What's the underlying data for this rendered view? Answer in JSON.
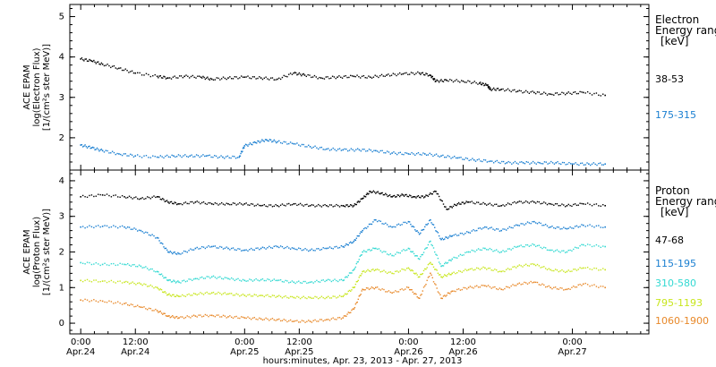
{
  "chart_data": [
    {
      "type": "scatter",
      "panel": "electron",
      "ylabel_lines": [
        "ACE EPAM",
        "log(Electron Flux)",
        "[1/(cm²s ster MeV)]"
      ],
      "ylim": [
        1.2,
        5.3
      ],
      "yticks": [
        "2",
        "3",
        "4",
        "5"
      ],
      "legend_title": [
        "Electron",
        "Energy range",
        "[keV]"
      ],
      "series": [
        {
          "name": "38-53",
          "color": "#000000",
          "points": [
            [
              0.0,
              3.95
            ],
            [
              0.1,
              3.9
            ],
            [
              0.2,
              3.82
            ],
            [
              0.35,
              3.72
            ],
            [
              0.5,
              3.6
            ],
            [
              0.7,
              3.52
            ],
            [
              0.8,
              3.48
            ],
            [
              0.95,
              3.52
            ],
            [
              1.1,
              3.5
            ],
            [
              1.2,
              3.45
            ],
            [
              1.35,
              3.48
            ],
            [
              1.5,
              3.5
            ],
            [
              1.65,
              3.48
            ],
            [
              1.8,
              3.45
            ],
            [
              1.95,
              3.6
            ],
            [
              2.05,
              3.55
            ],
            [
              2.2,
              3.48
            ],
            [
              2.35,
              3.5
            ],
            [
              2.5,
              3.52
            ],
            [
              2.65,
              3.5
            ],
            [
              2.8,
              3.55
            ],
            [
              2.95,
              3.58
            ],
            [
              3.1,
              3.6
            ],
            [
              3.2,
              3.55
            ],
            [
              3.25,
              3.4
            ],
            [
              3.35,
              3.42
            ],
            [
              3.5,
              3.4
            ],
            [
              3.65,
              3.35
            ],
            [
              3.72,
              3.3
            ],
            [
              3.75,
              3.2
            ],
            [
              3.85,
              3.2
            ],
            [
              4.0,
              3.15
            ],
            [
              4.15,
              3.12
            ],
            [
              4.3,
              3.08
            ],
            [
              4.45,
              3.1
            ],
            [
              4.6,
              3.12
            ],
            [
              4.8,
              3.05
            ]
          ]
        },
        {
          "name": "175-315",
          "color": "#1a7fd1",
          "points": [
            [
              0.0,
              1.82
            ],
            [
              0.1,
              1.75
            ],
            [
              0.2,
              1.68
            ],
            [
              0.35,
              1.6
            ],
            [
              0.5,
              1.55
            ],
            [
              0.7,
              1.52
            ],
            [
              0.85,
              1.55
            ],
            [
              1.0,
              1.55
            ],
            [
              1.15,
              1.55
            ],
            [
              1.3,
              1.52
            ],
            [
              1.45,
              1.52
            ],
            [
              1.5,
              1.8
            ],
            [
              1.6,
              1.88
            ],
            [
              1.7,
              1.95
            ],
            [
              1.8,
              1.9
            ],
            [
              1.95,
              1.85
            ],
            [
              2.1,
              1.78
            ],
            [
              2.25,
              1.72
            ],
            [
              2.4,
              1.7
            ],
            [
              2.55,
              1.7
            ],
            [
              2.7,
              1.68
            ],
            [
              2.85,
              1.62
            ],
            [
              3.0,
              1.6
            ],
            [
              3.15,
              1.6
            ],
            [
              3.3,
              1.55
            ],
            [
              3.45,
              1.5
            ],
            [
              3.6,
              1.45
            ],
            [
              3.75,
              1.42
            ],
            [
              3.9,
              1.38
            ],
            [
              4.05,
              1.38
            ],
            [
              4.2,
              1.38
            ],
            [
              4.35,
              1.38
            ],
            [
              4.5,
              1.35
            ],
            [
              4.65,
              1.35
            ],
            [
              4.8,
              1.35
            ]
          ]
        }
      ]
    },
    {
      "type": "scatter",
      "panel": "proton",
      "ylabel_lines": [
        "ACE EPAM",
        "log(Proton Flux)",
        "[1/(cm²s ster MeV)]"
      ],
      "ylim": [
        -0.3,
        4.3
      ],
      "yticks": [
        "0",
        "1",
        "2",
        "3",
        "4"
      ],
      "legend_title": [
        "Proton",
        "Energy range",
        "[keV]"
      ],
      "series": [
        {
          "name": "47-68",
          "color": "#000000",
          "points": [
            [
              0.0,
              3.55
            ],
            [
              0.2,
              3.6
            ],
            [
              0.4,
              3.55
            ],
            [
              0.55,
              3.5
            ],
            [
              0.7,
              3.55
            ],
            [
              0.8,
              3.4
            ],
            [
              0.9,
              3.35
            ],
            [
              1.05,
              3.4
            ],
            [
              1.2,
              3.35
            ],
            [
              1.35,
              3.35
            ],
            [
              1.5,
              3.35
            ],
            [
              1.65,
              3.3
            ],
            [
              1.8,
              3.3
            ],
            [
              1.95,
              3.35
            ],
            [
              2.1,
              3.3
            ],
            [
              2.25,
              3.3
            ],
            [
              2.4,
              3.3
            ],
            [
              2.5,
              3.3
            ],
            [
              2.58,
              3.5
            ],
            [
              2.65,
              3.7
            ],
            [
              2.75,
              3.65
            ],
            [
              2.85,
              3.55
            ],
            [
              2.95,
              3.6
            ],
            [
              3.05,
              3.55
            ],
            [
              3.15,
              3.55
            ],
            [
              3.25,
              3.7
            ],
            [
              3.35,
              3.2
            ],
            [
              3.45,
              3.35
            ],
            [
              3.55,
              3.4
            ],
            [
              3.7,
              3.35
            ],
            [
              3.85,
              3.3
            ],
            [
              4.0,
              3.4
            ],
            [
              4.15,
              3.4
            ],
            [
              4.3,
              3.35
            ],
            [
              4.45,
              3.3
            ],
            [
              4.6,
              3.35
            ],
            [
              4.8,
              3.3
            ]
          ]
        },
        {
          "name": "115-195",
          "color": "#1a7fd1",
          "points": [
            [
              0.0,
              2.7
            ],
            [
              0.2,
              2.72
            ],
            [
              0.4,
              2.7
            ],
            [
              0.55,
              2.6
            ],
            [
              0.7,
              2.4
            ],
            [
              0.8,
              2.0
            ],
            [
              0.9,
              1.95
            ],
            [
              1.05,
              2.1
            ],
            [
              1.2,
              2.15
            ],
            [
              1.35,
              2.1
            ],
            [
              1.5,
              2.05
            ],
            [
              1.65,
              2.1
            ],
            [
              1.8,
              2.15
            ],
            [
              1.95,
              2.1
            ],
            [
              2.1,
              2.05
            ],
            [
              2.25,
              2.1
            ],
            [
              2.4,
              2.15
            ],
            [
              2.5,
              2.3
            ],
            [
              2.58,
              2.6
            ],
            [
              2.7,
              2.9
            ],
            [
              2.85,
              2.7
            ],
            [
              3.0,
              2.85
            ],
            [
              3.1,
              2.5
            ],
            [
              3.2,
              2.9
            ],
            [
              3.3,
              2.35
            ],
            [
              3.4,
              2.45
            ],
            [
              3.55,
              2.55
            ],
            [
              3.7,
              2.7
            ],
            [
              3.85,
              2.6
            ],
            [
              4.0,
              2.75
            ],
            [
              4.15,
              2.85
            ],
            [
              4.3,
              2.7
            ],
            [
              4.45,
              2.65
            ],
            [
              4.6,
              2.75
            ],
            [
              4.8,
              2.7
            ]
          ]
        },
        {
          "name": "310-580",
          "color": "#33d9d2",
          "points": [
            [
              0.0,
              1.7
            ],
            [
              0.2,
              1.65
            ],
            [
              0.4,
              1.65
            ],
            [
              0.55,
              1.6
            ],
            [
              0.7,
              1.45
            ],
            [
              0.8,
              1.2
            ],
            [
              0.9,
              1.15
            ],
            [
              1.05,
              1.25
            ],
            [
              1.2,
              1.3
            ],
            [
              1.35,
              1.25
            ],
            [
              1.5,
              1.2
            ],
            [
              1.65,
              1.22
            ],
            [
              1.8,
              1.2
            ],
            [
              1.95,
              1.15
            ],
            [
              2.1,
              1.15
            ],
            [
              2.25,
              1.2
            ],
            [
              2.4,
              1.2
            ],
            [
              2.5,
              1.5
            ],
            [
              2.58,
              2.0
            ],
            [
              2.7,
              2.1
            ],
            [
              2.85,
              1.9
            ],
            [
              3.0,
              2.1
            ],
            [
              3.1,
              1.8
            ],
            [
              3.2,
              2.3
            ],
            [
              3.3,
              1.6
            ],
            [
              3.4,
              1.8
            ],
            [
              3.55,
              2.0
            ],
            [
              3.7,
              2.1
            ],
            [
              3.85,
              2.0
            ],
            [
              4.0,
              2.15
            ],
            [
              4.15,
              2.2
            ],
            [
              4.3,
              2.05
            ],
            [
              4.45,
              2.0
            ],
            [
              4.6,
              2.2
            ],
            [
              4.8,
              2.15
            ]
          ]
        },
        {
          "name": "795-1193",
          "color": "#c8e61e",
          "points": [
            [
              0.0,
              1.2
            ],
            [
              0.2,
              1.18
            ],
            [
              0.4,
              1.15
            ],
            [
              0.55,
              1.1
            ],
            [
              0.7,
              1.0
            ],
            [
              0.8,
              0.8
            ],
            [
              0.9,
              0.75
            ],
            [
              1.05,
              0.82
            ],
            [
              1.2,
              0.85
            ],
            [
              1.35,
              0.82
            ],
            [
              1.5,
              0.78
            ],
            [
              1.65,
              0.78
            ],
            [
              1.8,
              0.75
            ],
            [
              1.95,
              0.72
            ],
            [
              2.1,
              0.72
            ],
            [
              2.25,
              0.72
            ],
            [
              2.4,
              0.75
            ],
            [
              2.5,
              1.0
            ],
            [
              2.58,
              1.45
            ],
            [
              2.7,
              1.5
            ],
            [
              2.85,
              1.4
            ],
            [
              3.0,
              1.55
            ],
            [
              3.1,
              1.3
            ],
            [
              3.2,
              1.7
            ],
            [
              3.3,
              1.3
            ],
            [
              3.4,
              1.4
            ],
            [
              3.55,
              1.5
            ],
            [
              3.7,
              1.55
            ],
            [
              3.85,
              1.45
            ],
            [
              4.0,
              1.6
            ],
            [
              4.15,
              1.65
            ],
            [
              4.3,
              1.5
            ],
            [
              4.45,
              1.45
            ],
            [
              4.6,
              1.55
            ],
            [
              4.8,
              1.5
            ]
          ]
        },
        {
          "name": "1060-1900",
          "color": "#e8892a",
          "points": [
            [
              0.0,
              0.65
            ],
            [
              0.2,
              0.62
            ],
            [
              0.4,
              0.55
            ],
            [
              0.55,
              0.45
            ],
            [
              0.7,
              0.35
            ],
            [
              0.8,
              0.2
            ],
            [
              0.9,
              0.15
            ],
            [
              1.05,
              0.2
            ],
            [
              1.2,
              0.22
            ],
            [
              1.35,
              0.18
            ],
            [
              1.5,
              0.15
            ],
            [
              1.65,
              0.12
            ],
            [
              1.8,
              0.1
            ],
            [
              1.95,
              0.05
            ],
            [
              2.1,
              0.05
            ],
            [
              2.25,
              0.1
            ],
            [
              2.4,
              0.15
            ],
            [
              2.5,
              0.4
            ],
            [
              2.58,
              0.95
            ],
            [
              2.7,
              1.0
            ],
            [
              2.85,
              0.85
            ],
            [
              3.0,
              1.0
            ],
            [
              3.1,
              0.7
            ],
            [
              3.2,
              1.4
            ],
            [
              3.3,
              0.7
            ],
            [
              3.4,
              0.9
            ],
            [
              3.55,
              1.0
            ],
            [
              3.7,
              1.05
            ],
            [
              3.85,
              0.95
            ],
            [
              4.0,
              1.1
            ],
            [
              4.15,
              1.15
            ],
            [
              4.3,
              1.0
            ],
            [
              4.45,
              0.95
            ],
            [
              4.6,
              1.1
            ],
            [
              4.8,
              1.0
            ]
          ]
        }
      ]
    }
  ],
  "x_axis": {
    "xlim": [
      -0.1,
      5.2
    ],
    "ticks": [
      {
        "x": 0.0,
        "top": "0:00",
        "bottom": "Apr.24"
      },
      {
        "x": 0.5,
        "top": "12:00",
        "bottom": "Apr.24"
      },
      {
        "x": 1.5,
        "top": "0:00",
        "bottom": "Apr.25"
      },
      {
        "x": 2.0,
        "top": "12:00",
        "bottom": "Apr.25"
      },
      {
        "x": 3.0,
        "top": "0:00",
        "bottom": "Apr.26"
      },
      {
        "x": 3.5,
        "top": "12:00",
        "bottom": "Apr.26"
      },
      {
        "x": 4.5,
        "top": "0:00",
        "bottom": "Apr.27"
      }
    ],
    "minor_step": 0.125,
    "xlabel": "hours:minutes, Apr. 23, 2013 - Apr. 27, 2013"
  }
}
